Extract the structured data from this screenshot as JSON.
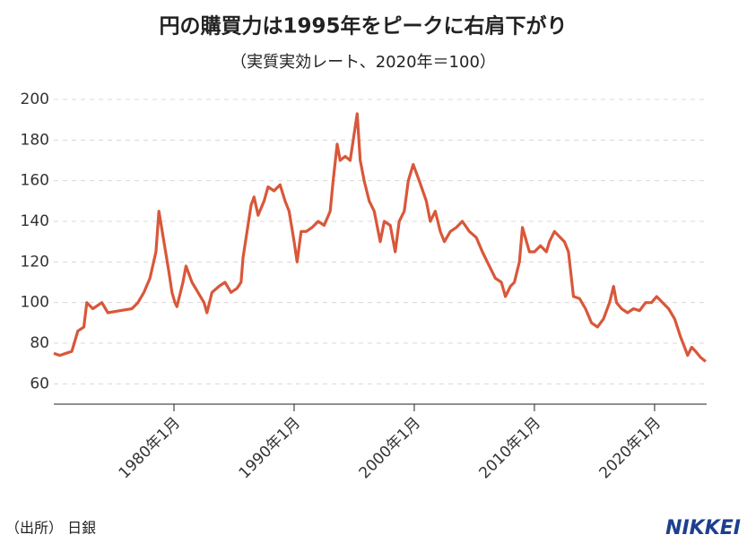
{
  "chart_data": {
    "type": "line",
    "title": "円の購買力は1995年をピークに右肩下がり",
    "subtitle": "（実質実効レート、2020年＝100）",
    "source": "（出所） 日銀",
    "logo": "NIKKEI",
    "x": [
      "1970-01",
      "1970-07",
      "1971-01",
      "1971-07",
      "1972-01",
      "1972-07",
      "1972-10",
      "1973-04",
      "1974-01",
      "1974-07",
      "1975-07",
      "1976-07",
      "1977-01",
      "1977-07",
      "1978-01",
      "1978-07",
      "1978-10",
      "1979-03",
      "1979-08",
      "1979-11",
      "1980-02",
      "1980-04",
      "1980-10",
      "1981-01",
      "1981-07",
      "1982-01",
      "1982-07",
      "1982-10",
      "1983-03",
      "1983-10",
      "1984-04",
      "1984-10",
      "1985-04",
      "1985-08",
      "1985-10",
      "1986-02",
      "1986-06",
      "1986-09",
      "1987-01",
      "1987-07",
      "1987-11",
      "1988-05",
      "1988-11",
      "1989-04",
      "1989-08",
      "1990-01",
      "1990-04",
      "1990-08",
      "1991-01",
      "1991-07",
      "1992-01",
      "1992-07",
      "1993-01",
      "1993-04",
      "1993-08",
      "1993-11",
      "1994-04",
      "1994-09",
      "1995-04",
      "1995-07",
      "1995-11",
      "1996-04",
      "1996-09",
      "1997-03",
      "1997-07",
      "1998-01",
      "1998-06",
      "1998-10",
      "1999-03",
      "1999-07",
      "1999-12",
      "2000-06",
      "2001-01",
      "2001-05",
      "2001-10",
      "2002-03",
      "2002-07",
      "2003-01",
      "2003-07",
      "2004-01",
      "2004-08",
      "2005-03",
      "2005-09",
      "2006-04",
      "2006-10",
      "2007-04",
      "2007-08",
      "2008-01",
      "2008-05",
      "2008-10",
      "2009-01",
      "2009-08",
      "2010-01",
      "2010-07",
      "2011-01",
      "2011-04",
      "2011-09",
      "2012-01",
      "2012-07",
      "2012-11",
      "2013-04",
      "2013-10",
      "2014-04",
      "2014-10",
      "2015-04",
      "2015-10",
      "2016-04",
      "2016-08",
      "2016-11",
      "2017-04",
      "2017-10",
      "2018-04",
      "2018-10",
      "2019-04",
      "2019-10",
      "2020-03",
      "2020-09",
      "2021-03",
      "2021-09",
      "2022-03",
      "2022-07",
      "2022-10",
      "2023-02",
      "2023-06",
      "2023-11",
      "2024-04"
    ],
    "series": [
      {
        "name": "実質実効レート",
        "color": "#d9573a",
        "values": [
          75,
          74,
          75,
          76,
          86,
          88,
          100,
          97,
          100,
          95,
          96,
          97,
          100,
          105,
          112,
          125,
          145,
          130,
          115,
          105,
          100,
          98,
          110,
          118,
          110,
          105,
          100,
          95,
          105,
          108,
          110,
          105,
          107,
          110,
          122,
          135,
          148,
          152,
          143,
          150,
          157,
          155,
          158,
          150,
          145,
          130,
          120,
          135,
          135,
          137,
          140,
          138,
          145,
          160,
          178,
          170,
          172,
          170,
          193,
          170,
          160,
          150,
          145,
          130,
          140,
          138,
          125,
          140,
          145,
          160,
          168,
          160,
          150,
          140,
          145,
          135,
          130,
          135,
          137,
          140,
          135,
          132,
          125,
          118,
          112,
          110,
          103,
          108,
          110,
          120,
          137,
          125,
          125,
          128,
          125,
          130,
          135,
          133,
          130,
          125,
          103,
          102,
          97,
          90,
          88,
          92,
          100,
          108,
          100,
          97,
          95,
          97,
          96,
          100,
          100,
          103,
          100,
          97,
          92,
          83,
          78,
          74,
          78,
          76,
          73,
          71
        ]
      }
    ],
    "xlim": [
      "1970-01",
      "2024-05"
    ],
    "xticks": [
      {
        "value": "1980-01",
        "label": "1980年1月"
      },
      {
        "value": "1990-01",
        "label": "1990年1月"
      },
      {
        "value": "2000-01",
        "label": "2000年1月"
      },
      {
        "value": "2010-01",
        "label": "2010年1月"
      },
      {
        "value": "2020-01",
        "label": "2020年1月"
      }
    ],
    "ylim": [
      50,
      200
    ],
    "yticks": [
      60,
      80,
      100,
      120,
      140,
      160,
      180,
      200
    ],
    "grid": true
  }
}
